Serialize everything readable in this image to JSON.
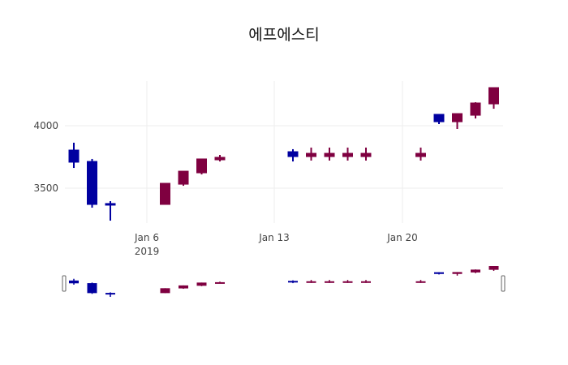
{
  "chart_data": {
    "type": "candlestick",
    "title": "에프에스티",
    "xlabel": "",
    "ylabel": "",
    "x_ticks": [
      "Jan 6\n2019",
      "Jan 13",
      "Jan 20"
    ],
    "y_ticks": [
      3500,
      4000
    ],
    "ylim": [
      3180,
      4340
    ],
    "grid": true,
    "rangeslider": true,
    "colors": {
      "increasing": "#7f0040",
      "decreasing": "#0000a0",
      "grid": "#eeeeee"
    },
    "dates": [
      "2019-01-02",
      "2019-01-03",
      "2019-01-04",
      "2019-01-07",
      "2019-01-08",
      "2019-01-09",
      "2019-01-10",
      "2019-01-14",
      "2019-01-15",
      "2019-01-16",
      "2019-01-17",
      "2019-01-18",
      "2019-01-21",
      "2019-01-22",
      "2019-01-23",
      "2019-01-24",
      "2019-01-25"
    ],
    "open": [
      3805,
      3714,
      3377,
      3370,
      3532,
      3623,
      3727,
      3792,
      3753,
      3753,
      3753,
      3753,
      3753,
      4091,
      4032,
      4084,
      4175
    ],
    "high": [
      3864,
      3734,
      3396,
      3539,
      3636,
      3734,
      3766,
      3812,
      3825,
      3825,
      3825,
      3825,
      3825,
      4091,
      4097,
      4188,
      4305
    ],
    "low": [
      3662,
      3344,
      3240,
      3370,
      3519,
      3610,
      3714,
      3714,
      3721,
      3721,
      3721,
      3721,
      3721,
      4013,
      3974,
      4058,
      4136
    ],
    "close": [
      3708,
      3370,
      3370,
      3539,
      3636,
      3734,
      3747,
      3753,
      3779,
      3779,
      3779,
      3779,
      3779,
      4032,
      4097,
      4182,
      4305
    ]
  },
  "labels": {
    "title": "에프에스티",
    "y_tick_4000": "4000",
    "y_tick_3500": "3500",
    "x_tick_jan6": "Jan 6",
    "x_tick_year": "2019",
    "x_tick_jan13": "Jan 13",
    "x_tick_jan20": "Jan 20"
  }
}
